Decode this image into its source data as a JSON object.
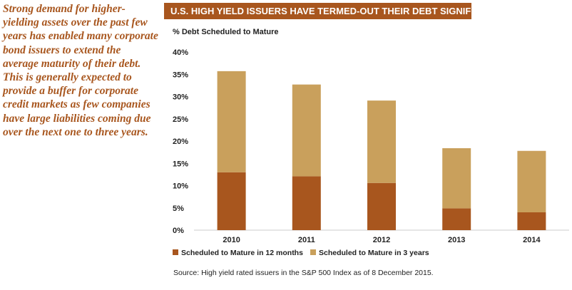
{
  "sidebar_text": "Strong demand for higher-yielding assets over the past few years has enabled many corporate bond issuers to extend the average maturity of their debt. This is generally expected to provide a buffer for corporate credit markets as few companies have large liabilities coming due over the next one to three years.",
  "chart_data": {
    "type": "bar",
    "stacked": true,
    "title": "U.S. HIGH YIELD ISSUERS HAVE TERMED-OUT THEIR DEBT SIGNIFICANTLY",
    "ylabel": "% Debt Scheduled to Mature",
    "xlabel": "",
    "categories": [
      "2010",
      "2011",
      "2012",
      "2013",
      "2014"
    ],
    "series": [
      {
        "name": "Scheduled to Mature in 12 months",
        "values": [
          13.0,
          12.1,
          10.6,
          4.9,
          4.0
        ],
        "color": "#a8561e"
      },
      {
        "name": "Scheduled to Mature in 3 years",
        "values": [
          22.7,
          20.6,
          18.5,
          13.5,
          13.8
        ],
        "color": "#c9a05c"
      }
    ],
    "ylim": [
      0,
      40
    ],
    "yticks": [
      "0%",
      "5%",
      "10%",
      "15%",
      "20%",
      "25%",
      "30%",
      "35%",
      "40%"
    ],
    "legend_position": "bottom",
    "source": "Source: High yield rated issuers in the S&P 500 Index as of 8 December 2015."
  }
}
